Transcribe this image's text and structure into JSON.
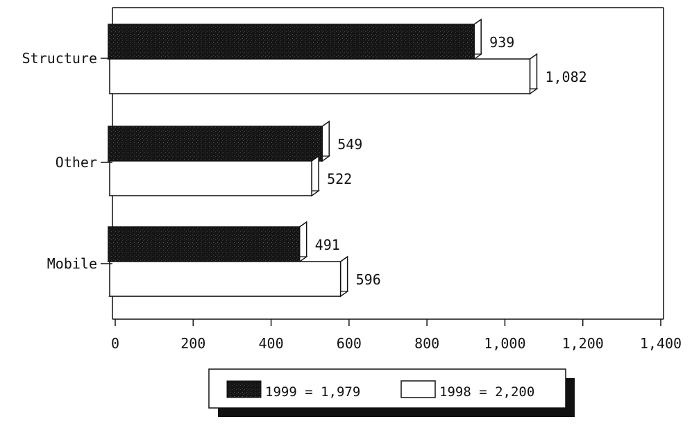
{
  "chart_data": {
    "type": "bar",
    "orientation": "horizontal",
    "style": "3d",
    "categories": [
      "Structure",
      "Other",
      "Mobile"
    ],
    "series": [
      {
        "name": "1999 = 1,979",
        "color": "#111111",
        "values": [
          939,
          549,
          491
        ],
        "labels": [
          "939",
          "549",
          "491"
        ]
      },
      {
        "name": "1998 = 2,200",
        "color": "#ffffff",
        "values": [
          1082,
          522,
          596
        ],
        "labels": [
          "1,082",
          "522",
          "596"
        ]
      }
    ],
    "xlim": [
      0,
      1400
    ],
    "xticks": [
      0,
      200,
      400,
      600,
      800,
      1000,
      1200,
      1400
    ],
    "xtick_labels": [
      "0",
      "200",
      "400",
      "600",
      "800",
      "1,000",
      "1,200",
      "1,400"
    ],
    "title": "",
    "xlabel": "",
    "ylabel": "",
    "grid": false,
    "legend_position": "bottom-center"
  }
}
